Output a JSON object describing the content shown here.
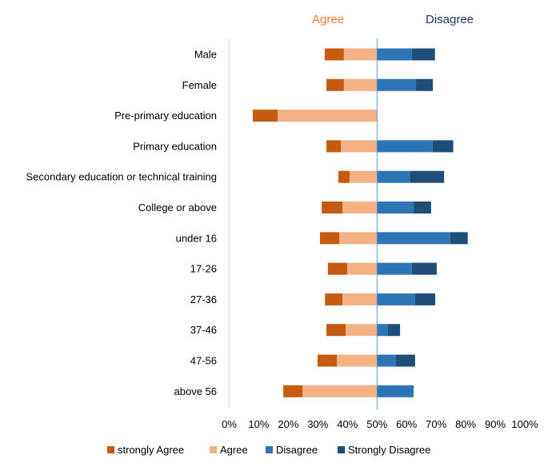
{
  "chart_data": {
    "type": "bar",
    "orientation": "horizontal",
    "stacked": "diverging",
    "header_left": "Agree",
    "header_right": "Disagree",
    "categories": [
      "Male",
      "Female",
      "Pre-primary education",
      "Primary education",
      "Secondary education or technical training",
      "College or above",
      "under 16",
      "17-26",
      "27-36",
      "37-46",
      "47-56",
      "above 56"
    ],
    "series": [
      {
        "name": "strongly Agree",
        "side": "left",
        "color": "#C55A11",
        "values": [
          6.5,
          5.9,
          8.4,
          4.9,
          3.8,
          7.0,
          6.5,
          6.5,
          5.9,
          6.5,
          6.5,
          6.5
        ]
      },
      {
        "name": "Agree",
        "side": "left",
        "color": "#F4B183",
        "values": [
          11.2,
          11.2,
          33.6,
          12.2,
          9.3,
          11.7,
          12.8,
          10.1,
          11.7,
          10.6,
          13.6,
          25.2
        ]
      },
      {
        "name": "Disagree",
        "side": "right",
        "color": "#2E75B6",
        "values": [
          11.8,
          13.2,
          0,
          18.8,
          11.3,
          12.4,
          24.8,
          11.8,
          12.9,
          3.7,
          6.4,
          12.4
        ]
      },
      {
        "name": "Strongly Disagree",
        "side": "right",
        "color": "#1F4E79",
        "values": [
          7.8,
          5.7,
          0,
          7.0,
          11.4,
          5.9,
          5.9,
          8.4,
          6.8,
          4.1,
          6.5,
          0
        ]
      }
    ],
    "center": 50,
    "xlim": [
      0,
      100
    ],
    "xticks": [
      "0%",
      "10%",
      "20%",
      "30%",
      "40%",
      "50%",
      "60%",
      "70%",
      "80%",
      "90%",
      "100%"
    ],
    "legend_position": "bottom",
    "grid": false,
    "colors": {
      "agree_header": "#ED7D31",
      "disagree_header": "#1F3864",
      "center_line": "#5B9BD5"
    }
  }
}
